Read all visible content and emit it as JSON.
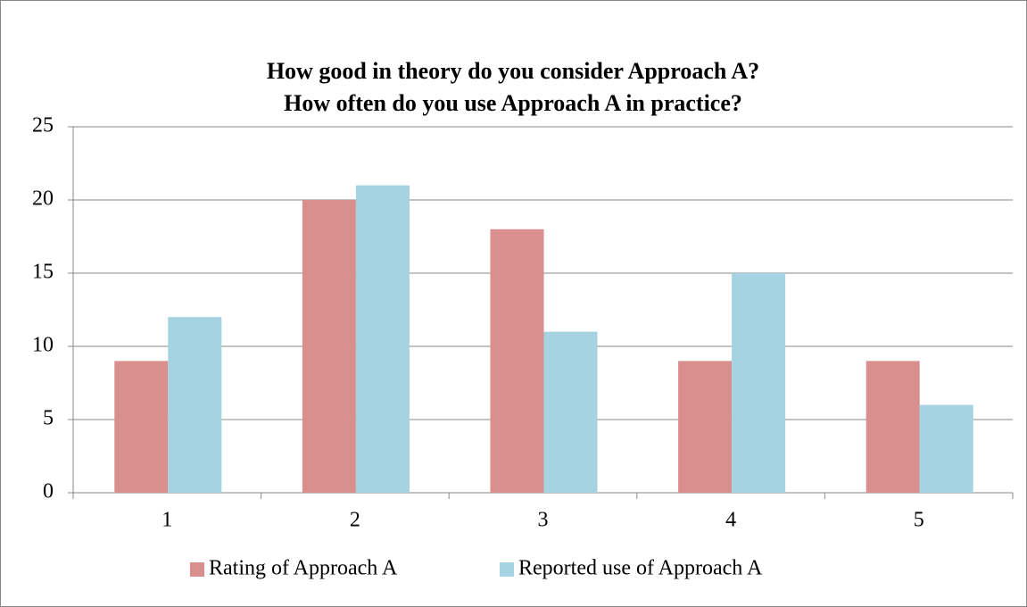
{
  "chart_data": {
    "type": "bar",
    "title": [
      "How good in theory do you consider Approach A?",
      "How often do you use Approach A in practice?"
    ],
    "categories": [
      "1",
      "2",
      "3",
      "4",
      "5"
    ],
    "series": [
      {
        "name": "Rating of Approach A",
        "color": "#da8f8f",
        "values": [
          9,
          20,
          18,
          9,
          9
        ]
      },
      {
        "name": "Reported use of Approach A",
        "color": "#a5d3e1",
        "values": [
          12,
          21,
          11,
          15,
          6
        ]
      }
    ],
    "ylim": [
      0,
      25
    ],
    "yticks": [
      0,
      5,
      10,
      15,
      20,
      25
    ],
    "grid": true,
    "legend": "bottom"
  }
}
